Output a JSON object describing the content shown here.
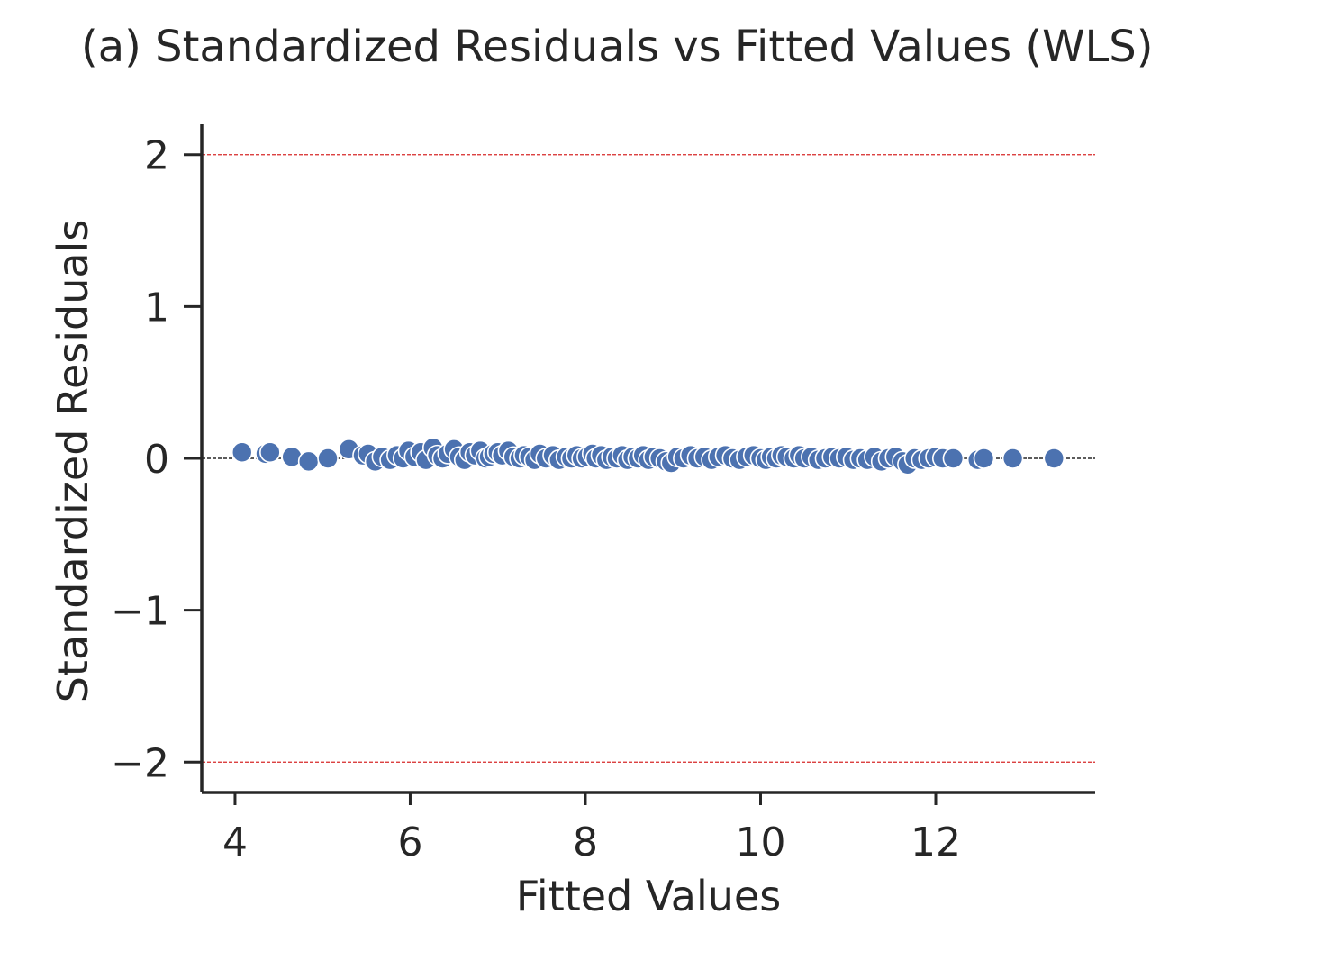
{
  "chart_data": {
    "type": "scatter",
    "title": "(a) Standardized Residuals vs Fitted Values (WLS)",
    "xlabel": "Fitted Values",
    "ylabel": "Standardized Residuals",
    "xlim": [
      3.62,
      13.82
    ],
    "ylim": [
      -2.2,
      2.2
    ],
    "xticks": [
      4,
      6,
      8,
      10,
      12
    ],
    "yticks": [
      -2,
      -1,
      0,
      1,
      2
    ],
    "xtick_labels": [
      "4",
      "6",
      "8",
      "10",
      "12"
    ],
    "ytick_labels": [
      "−2",
      "−1",
      "0",
      "1",
      "2"
    ],
    "reference_lines": [
      {
        "y": 2,
        "style": "dashed",
        "color": "#d62728"
      },
      {
        "y": -2,
        "style": "dashed",
        "color": "#d62728"
      },
      {
        "y": 0,
        "style": "dashed",
        "color": "#262626"
      }
    ],
    "marker_color": "#4c72b0",
    "marker_edge_color": "#ffffff",
    "grid": false,
    "series": [
      {
        "x": [
          4.08,
          4.35,
          4.4,
          4.65,
          4.84,
          5.06,
          5.3,
          5.46,
          5.52,
          5.6,
          5.68,
          5.77,
          5.85,
          5.92,
          5.98,
          6.05,
          6.12,
          6.18,
          6.26,
          6.31,
          6.37,
          6.43,
          6.5,
          6.56,
          6.62,
          6.68,
          6.74,
          6.8,
          6.86,
          6.9,
          6.95,
          7.0,
          7.05,
          7.12,
          7.18,
          7.25,
          7.3,
          7.36,
          7.42,
          7.48,
          7.55,
          7.63,
          7.7,
          7.78,
          7.84,
          7.9,
          7.96,
          8.02,
          8.08,
          8.12,
          8.18,
          8.24,
          8.3,
          8.36,
          8.42,
          8.48,
          8.54,
          8.6,
          8.66,
          8.72,
          8.78,
          8.85,
          8.92,
          8.98,
          9.05,
          9.12,
          9.2,
          9.28,
          9.36,
          9.44,
          9.52,
          9.6,
          9.68,
          9.76,
          9.84,
          9.92,
          10.0,
          10.06,
          10.12,
          10.18,
          10.24,
          10.3,
          10.38,
          10.44,
          10.5,
          10.58,
          10.66,
          10.74,
          10.82,
          10.9,
          10.98,
          11.06,
          11.14,
          11.22,
          11.3,
          11.38,
          11.46,
          11.54,
          11.62,
          11.68,
          11.76,
          11.84,
          11.92,
          12.0,
          12.08,
          12.2,
          12.48,
          12.55,
          12.88,
          13.35
        ],
        "y": [
          0.04,
          0.03,
          0.04,
          0.01,
          -0.02,
          0.0,
          0.06,
          0.02,
          0.03,
          -0.02,
          0.01,
          -0.01,
          0.02,
          0.0,
          0.05,
          0.01,
          0.04,
          -0.01,
          0.07,
          0.02,
          0.0,
          0.03,
          0.06,
          0.01,
          -0.01,
          0.04,
          0.02,
          0.05,
          0.0,
          0.01,
          0.03,
          0.04,
          0.02,
          0.05,
          0.01,
          0.0,
          0.02,
          0.01,
          -0.01,
          0.03,
          0.0,
          0.02,
          -0.01,
          0.01,
          0.0,
          0.02,
          0.0,
          0.01,
          0.03,
          0.0,
          0.02,
          -0.01,
          0.01,
          0.0,
          0.02,
          -0.01,
          0.01,
          0.0,
          0.02,
          -0.01,
          0.01,
          0.0,
          -0.02,
          -0.03,
          0.01,
          0.0,
          0.02,
          0.0,
          0.01,
          -0.01,
          0.01,
          0.02,
          0.0,
          -0.01,
          0.01,
          0.02,
          0.0,
          -0.01,
          0.01,
          0.0,
          0.02,
          0.01,
          0.0,
          0.02,
          0.0,
          0.01,
          -0.01,
          0.0,
          0.01,
          0.0,
          0.01,
          -0.01,
          0.0,
          -0.01,
          0.01,
          -0.02,
          0.0,
          0.01,
          -0.02,
          -0.04,
          0.0,
          -0.01,
          0.0,
          0.01,
          0.0,
          0.0,
          -0.01,
          0.0,
          0.0,
          0.0
        ]
      }
    ]
  }
}
